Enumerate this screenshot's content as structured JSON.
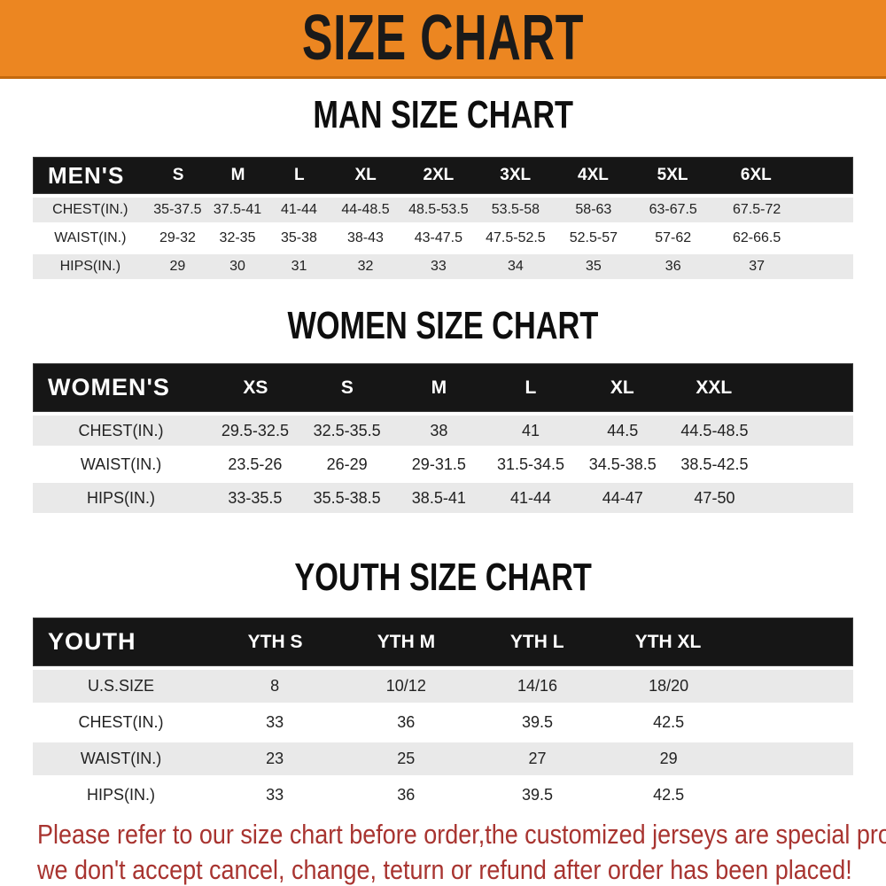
{
  "banner": {
    "title": "SIZE CHART"
  },
  "sections": {
    "men": {
      "title": "MAN SIZE CHART",
      "header": {
        "label": "MEN'S",
        "cols": [
          "S",
          "M",
          "L",
          "XL",
          "2XL",
          "3XL",
          "4XL",
          "5XL",
          "6XL"
        ]
      },
      "rows": [
        {
          "label": "CHEST(IN.)",
          "values": [
            "35-37.5",
            "37.5-41",
            "41-44",
            "44-48.5",
            "48.5-53.5",
            "53.5-58",
            "58-63",
            "63-67.5",
            "67.5-72"
          ]
        },
        {
          "label": "WAIST(IN.)",
          "values": [
            "29-32",
            "32-35",
            "35-38",
            "38-43",
            "43-47.5",
            "47.5-52.5",
            "52.5-57",
            "57-62",
            "62-66.5"
          ]
        },
        {
          "label": "HIPS(IN.)",
          "values": [
            "29",
            "30",
            "31",
            "32",
            "33",
            "34",
            "35",
            "36",
            "37"
          ]
        }
      ]
    },
    "women": {
      "title": "WOMEN SIZE CHART",
      "header": {
        "label": "WOMEN'S",
        "cols": [
          "XS",
          "S",
          "M",
          "L",
          "XL",
          "XXL"
        ]
      },
      "rows": [
        {
          "label": "CHEST(IN.)",
          "values": [
            "29.5-32.5",
            "32.5-35.5",
            "38",
            "41",
            "44.5",
            "44.5-48.5"
          ]
        },
        {
          "label": "WAIST(IN.)",
          "values": [
            "23.5-26",
            "26-29",
            "29-31.5",
            "31.5-34.5",
            "34.5-38.5",
            "38.5-42.5"
          ]
        },
        {
          "label": "HIPS(IN.)",
          "values": [
            "33-35.5",
            "35.5-38.5",
            "38.5-41",
            "41-44",
            "44-47",
            "47-50"
          ]
        }
      ]
    },
    "youth": {
      "title": "YOUTH SIZE CHART",
      "header": {
        "label": "YOUTH",
        "cols": [
          "YTH S",
          "YTH M",
          "YTH L",
          "YTH XL"
        ]
      },
      "rows": [
        {
          "label": "U.S.SIZE",
          "values": [
            "8",
            "10/12",
            "14/16",
            "18/20"
          ]
        },
        {
          "label": "CHEST(IN.)",
          "values": [
            "33",
            "36",
            "39.5",
            "42.5"
          ]
        },
        {
          "label": "WAIST(IN.)",
          "values": [
            "23",
            "25",
            "27",
            "29"
          ]
        },
        {
          "label": "HIPS(IN.)",
          "values": [
            "33",
            "36",
            "39.5",
            "42.5"
          ]
        }
      ]
    }
  },
  "footer": {
    "line1": "Please refer to our size chart before order,the customized jerseys are special products,",
    "line2": "we don't accept cancel, change, teturn or refund after order has been placed!"
  },
  "colors": {
    "banner-bg": "#EC8621",
    "banner-border": "#C4690D",
    "banner-text": "#1A1A1A",
    "header-bg": "#161616",
    "header-text": "#FFFFFF",
    "row-gray": "#E9E9E9",
    "row-white": "#FFFFFF",
    "cell-text": "#222222",
    "footer-red": "#A83430"
  }
}
